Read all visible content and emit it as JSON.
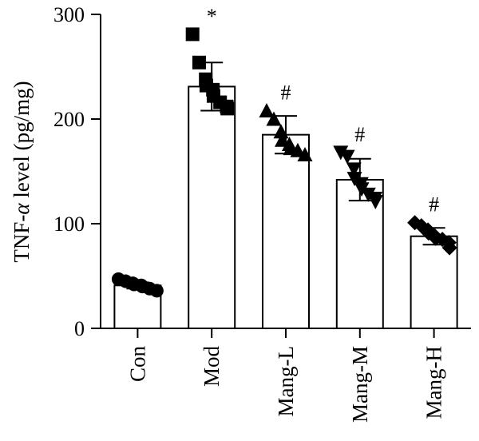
{
  "chart_data": {
    "type": "bar",
    "categories": [
      "Con",
      "Mod",
      "Mang-L",
      "Mang-M",
      "Mang-H"
    ],
    "values": [
      41,
      231,
      185,
      142,
      88
    ],
    "errors": [
      3,
      23,
      18,
      20,
      8
    ],
    "annotations": [
      "",
      "*",
      "#",
      "#",
      "#"
    ],
    "markers": [
      "circle",
      "square",
      "triangle-up",
      "triangle-down",
      "diamond"
    ],
    "points": [
      [
        47,
        45,
        43,
        42,
        41,
        40,
        38,
        36
      ],
      [
        281,
        254,
        238,
        232,
        228,
        222,
        216,
        212,
        210
      ],
      [
        208,
        200,
        188,
        180,
        176,
        172,
        170,
        166
      ],
      [
        168,
        164,
        152,
        143,
        138,
        133,
        128,
        124,
        121
      ],
      [
        101,
        98,
        94,
        91,
        88,
        86,
        85,
        82,
        77
      ]
    ],
    "ylabel": "TNF-α level (pg/mg)",
    "ylim": [
      0,
      300
    ],
    "yticks": [
      0,
      100,
      200,
      300
    ],
    "grid": false,
    "colors": {
      "bar_fill": "#ffffff",
      "stroke": "#000000",
      "marker": "#000000"
    }
  }
}
